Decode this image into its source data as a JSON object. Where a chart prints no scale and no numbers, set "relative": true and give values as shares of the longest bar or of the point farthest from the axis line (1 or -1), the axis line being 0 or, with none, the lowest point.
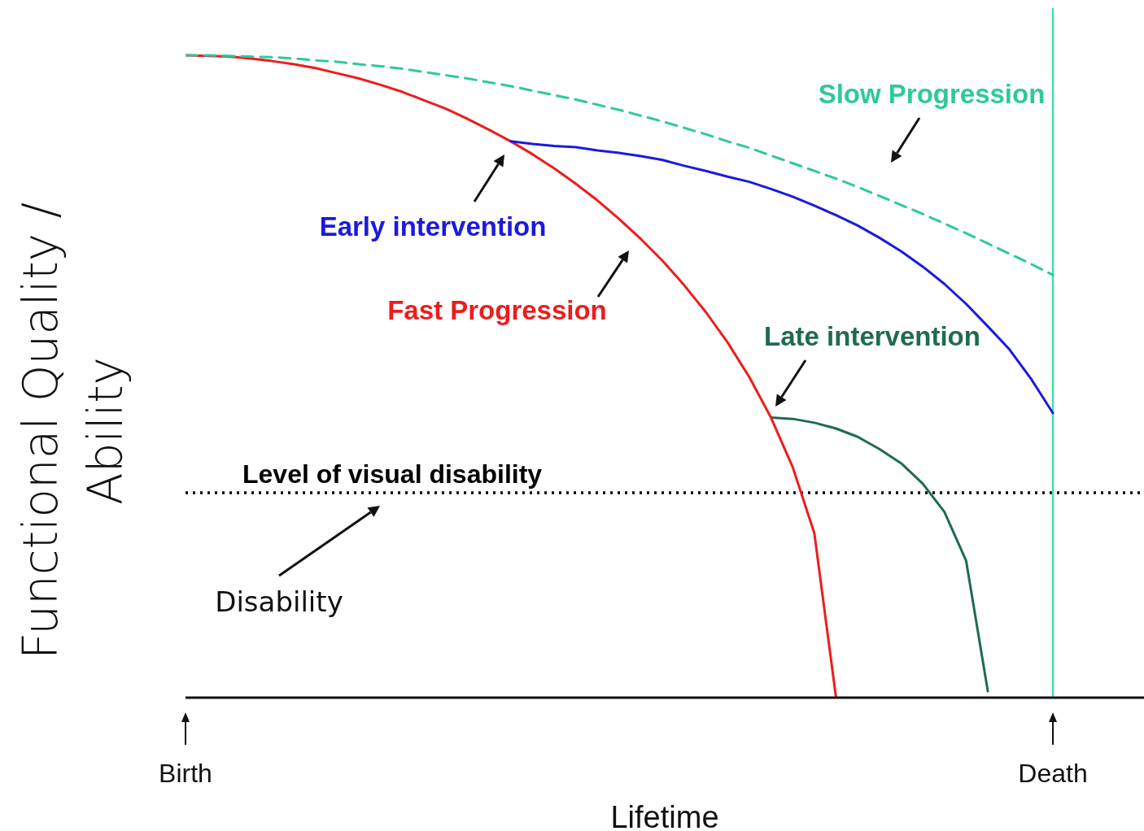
{
  "chart_data": {
    "type": "line",
    "relative": true,
    "xlabel": "Lifetime",
    "ylabel": "Functional Quality / Ability",
    "categories": [
      "Birth",
      null,
      null,
      null,
      null,
      null,
      null,
      null,
      null,
      null,
      null,
      null,
      null,
      null,
      null,
      null,
      null,
      null,
      null,
      null,
      null,
      null,
      null,
      null,
      null,
      null,
      null,
      null,
      null,
      null,
      null,
      null,
      null,
      null,
      null,
      null,
      null,
      null,
      null,
      null,
      "Death",
      null,
      null,
      null,
      null
    ],
    "series": [
      {
        "name": "Slow Progression",
        "color": "#2ec99a",
        "line_style": "dashed",
        "values": [
          1,
          1,
          0.999,
          0.998,
          0.997,
          0.995,
          0.992,
          0.99,
          0.986,
          0.983,
          0.979,
          0.974,
          0.969,
          0.964,
          0.958,
          0.952,
          0.945,
          0.938,
          0.931,
          0.923,
          0.915,
          0.906,
          0.897,
          0.887,
          0.877,
          0.866,
          0.856,
          0.844,
          0.832,
          0.82,
          0.808,
          0.795,
          0.781,
          0.767,
          0.753,
          0.738,
          0.723,
          0.707,
          0.691,
          0.675,
          0.658,
          null,
          null,
          null,
          null
        ]
      },
      {
        "name": "Early intervention",
        "color": "#1a1adf",
        "line_style": "solid",
        "values": [
          null,
          null,
          null,
          null,
          null,
          null,
          null,
          null,
          null,
          null,
          null,
          null,
          null,
          null,
          null,
          0.866,
          0.862,
          0.859,
          0.857,
          0.852,
          0.848,
          0.843,
          0.837,
          0.828,
          0.82,
          0.811,
          0.803,
          0.792,
          0.78,
          0.766,
          0.751,
          0.735,
          0.716,
          0.695,
          0.671,
          0.644,
          0.613,
          0.578,
          0.542,
          0.496,
          0.443,
          null,
          null,
          null,
          null
        ]
      },
      {
        "name": "Fast Progression",
        "color": "#ee1c1c",
        "line_style": "solid",
        "values": [
          1,
          0.999,
          0.998,
          0.995,
          0.991,
          0.986,
          0.98,
          0.972,
          0.964,
          0.954,
          0.943,
          0.93,
          0.917,
          0.901,
          0.884,
          0.866,
          0.846,
          0.824,
          0.8,
          0.774,
          0.745,
          0.714,
          0.68,
          0.642,
          0.6,
          0.553,
          0.499,
          0.436,
          0.359,
          0.256,
          0,
          null,
          null,
          null,
          null,
          null,
          null,
          null,
          null,
          null,
          null,
          null,
          null,
          null,
          null
        ]
      },
      {
        "name": "Late intervention",
        "color": "#1f6b50",
        "line_style": "solid",
        "values": [
          null,
          null,
          null,
          null,
          null,
          null,
          null,
          null,
          null,
          null,
          null,
          null,
          null,
          null,
          null,
          null,
          null,
          null,
          null,
          null,
          null,
          null,
          null,
          null,
          null,
          null,
          null,
          0.436,
          0.434,
          0.428,
          0.419,
          0.406,
          0.387,
          0.365,
          0.333,
          0.289,
          0.213,
          0.01,
          null,
          null,
          null,
          null,
          null,
          null,
          null
        ]
      }
    ],
    "ref_lines": [
      {
        "axis": "y",
        "value": 0.319,
        "label": "Level of visual disability",
        "color": "#000000",
        "line_style": "dotted"
      },
      {
        "axis": "x",
        "value": "Death",
        "color": "#40e0b0",
        "line_style": "solid"
      }
    ],
    "annotations": [
      "Disability"
    ],
    "legend": false,
    "grid": false,
    "marker": "none"
  }
}
